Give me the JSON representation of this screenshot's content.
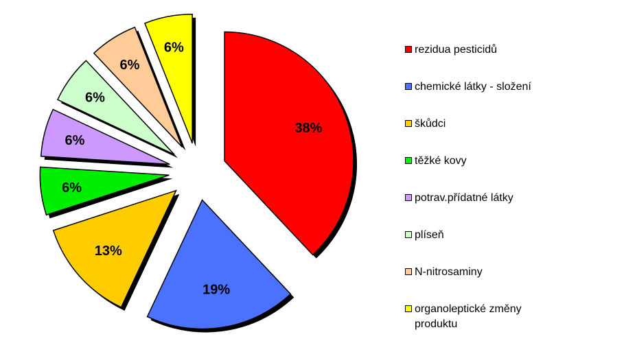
{
  "chart_data": {
    "type": "pie",
    "exploded": true,
    "shadow": true,
    "slices": [
      {
        "label": "rezidua pesticidů",
        "value": 38,
        "value_label": "38%",
        "color": "#ff0000"
      },
      {
        "label": "chemické látky - složení",
        "value": 19,
        "value_label": "19%",
        "color": "#4a72ff"
      },
      {
        "label": "škůdci",
        "value": 13,
        "value_label": "13%",
        "color": "#ffcc00"
      },
      {
        "label": "těžké kovy",
        "value": 6,
        "value_label": "6%",
        "color": "#00ee00"
      },
      {
        "label": "potrav.přídatné látky",
        "value": 6,
        "value_label": "6%",
        "color": "#cc99ff"
      },
      {
        "label": "plíseň",
        "value": 6,
        "value_label": "6%",
        "color": "#ccffcc"
      },
      {
        "label": "N-nitrosaminy",
        "value": 6,
        "value_label": "6%",
        "color": "#ffcc99"
      },
      {
        "label": "organoleptické změny produktu",
        "value": 6,
        "value_label": "6%",
        "color": "#ffff00"
      }
    ],
    "legend_position": "right"
  }
}
